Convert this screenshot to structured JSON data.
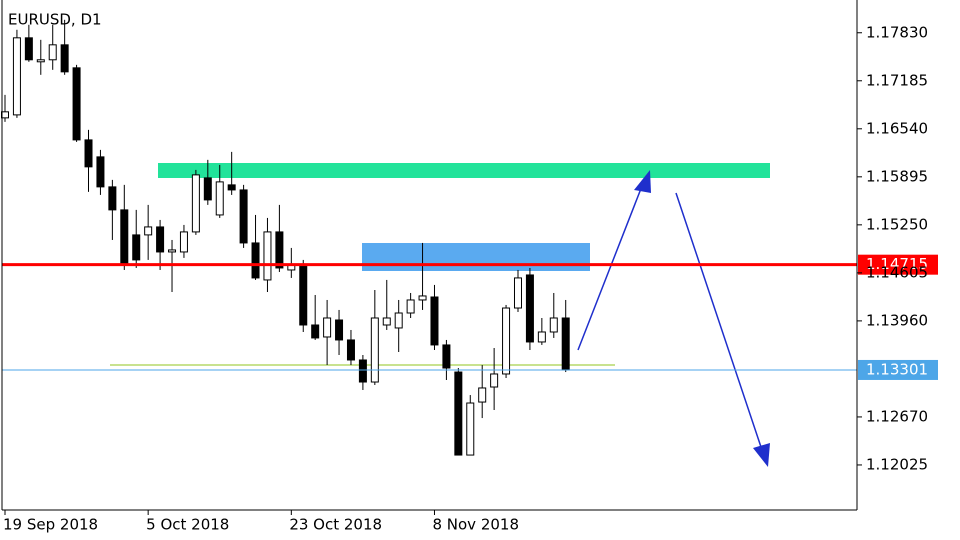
{
  "chart_data": {
    "type": "candlestick",
    "title": "EURUSD, D1",
    "categories": [
      "19 Sep 2018",
      null,
      null,
      null,
      null,
      null,
      null,
      null,
      null,
      null,
      null,
      null,
      "5 Oct 2018",
      null,
      null,
      null,
      null,
      null,
      null,
      null,
      null,
      null,
      null,
      null,
      "23 Oct 2018",
      null,
      null,
      null,
      null,
      null,
      null,
      null,
      null,
      null,
      null,
      null,
      "8 Nov 2018",
      null,
      null,
      null,
      null,
      null,
      null,
      null,
      null,
      null,
      null,
      null
    ],
    "open": [
      1.16687,
      1.16727,
      1.17762,
      1.1744,
      1.17467,
      1.17668,
      1.17359,
      1.16391,
      1.16163,
      1.1576,
      1.15451,
      1.15115,
      1.15115,
      1.15222,
      1.14886,
      1.14886,
      1.15155,
      1.15881,
      1.15383,
      1.15787,
      1.15719,
      1.15007,
      1.1451,
      1.15155,
      1.14644,
      1.14711,
      1.13905,
      1.13744,
      1.13972,
      1.13704,
      1.13435,
      1.13139,
      1.13905,
      1.13865,
      1.14066,
      1.14241,
      1.14281,
      1.13637,
      1.13273,
      1.12158,
      1.1287,
      1.13072,
      1.13247,
      1.14133,
      1.14577,
      1.13677,
      1.13811,
      1.13999
    ],
    "close": [
      1.16768,
      1.17762,
      1.17467,
      1.17467,
      1.17668,
      1.17305,
      1.16391,
      1.16029,
      1.1576,
      1.15451,
      1.14711,
      1.14779,
      1.15222,
      1.14886,
      1.14913,
      1.15155,
      1.15921,
      1.15585,
      1.15827,
      1.15719,
      1.15007,
      1.14537,
      1.15155,
      1.14671,
      1.14711,
      1.13905,
      1.13731,
      1.13999,
      1.13704,
      1.13435,
      1.13139,
      1.13999,
      1.13999,
      1.14066,
      1.14241,
      1.14295,
      1.13637,
      1.13327,
      1.12158,
      1.12857,
      1.13059,
      1.13247,
      1.14133,
      1.14537,
      1.13677,
      1.13811,
      1.13999,
      1.133
    ],
    "high": [
      1.16996,
      1.1787,
      1.17937,
      1.17735,
      1.17937,
      1.18004,
      1.17399,
      1.16526,
      1.16257,
      1.15854,
      1.15787,
      1.15451,
      1.15518,
      1.15316,
      1.15047,
      1.15249,
      1.15988,
      1.16123,
      1.16055,
      1.1623,
      1.15787,
      1.15383,
      1.15343,
      1.15518,
      1.1494,
      1.14779,
      1.14308,
      1.14241,
      1.14107,
      1.13838,
      1.13502,
      1.14375,
      1.1451,
      1.14241,
      1.14335,
      1.15007,
      1.14443,
      1.13704,
      1.13327,
      1.12964,
      1.13367,
      1.13596,
      1.14174,
      1.14644,
      1.14671,
      1.13999,
      1.14335,
      1.14241
    ],
    "low": [
      1.16633,
      1.16687,
      1.1744,
      1.17265,
      1.17332,
      1.17265,
      1.16364,
      1.15693,
      1.15652,
      1.15047,
      1.14644,
      1.14671,
      1.14779,
      1.14644,
      1.14348,
      1.14806,
      1.15115,
      1.15518,
      1.15343,
      1.15652,
      1.1494,
      1.1451,
      1.14348,
      1.14617,
      1.14537,
      1.13811,
      1.13704,
      1.13367,
      1.13502,
      1.13367,
      1.13032,
      1.13099,
      1.13838,
      1.13542,
      1.13999,
      1.14107,
      1.13569,
      1.13166,
      1.12158,
      1.12158,
      1.12655,
      1.12763,
      1.13193,
      1.1408,
      1.13569,
      1.13637,
      1.13731,
      1.13273
    ],
    "ylim": [
      1.1142,
      1.1827
    ],
    "yticks": [
      {
        "value": 1.1783,
        "label": "1.17830"
      },
      1.17185,
      {
        "value": 1.1654,
        "label": "1.16540"
      },
      1.15895,
      {
        "value": 1.1525,
        "label": "1.15250"
      },
      1.14605,
      {
        "value": 1.1396,
        "label": "1.13960"
      },
      {
        "value": 1.1267,
        "label": "1.12670"
      },
      1.12025
    ],
    "levels": [
      {
        "value": 1.14715,
        "color": "#ff0000"
      },
      {
        "value": 1.13301,
        "color": "#4da6e8"
      }
    ],
    "up_color": "#ffffff",
    "down_color": "#000000"
  }
}
